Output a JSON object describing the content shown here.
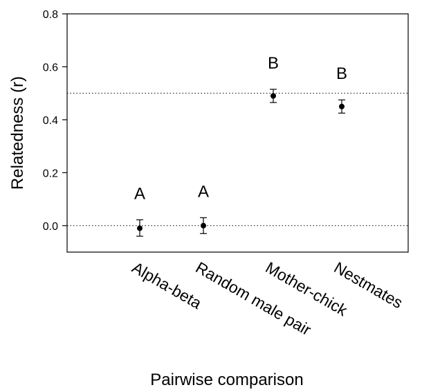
{
  "chart_data": {
    "type": "scatter",
    "xlabel": "Pairwise comparison",
    "ylabel": "Relatedness (r)",
    "ylim": [
      -0.1,
      0.8
    ],
    "yticks": [
      0.0,
      0.2,
      0.4,
      0.6,
      0.8
    ],
    "ytick_labels": [
      "0.0",
      "0.2",
      "0.4",
      "0.6",
      "0.8"
    ],
    "categories": [
      "Alpha-beta",
      "Random male pair",
      "Mother-chick",
      "Nestmates"
    ],
    "values": [
      -0.01,
      0.0,
      0.49,
      0.45
    ],
    "error_low": [
      -0.04,
      -0.03,
      0.465,
      0.425
    ],
    "error_high": [
      0.022,
      0.03,
      0.515,
      0.475
    ],
    "group_letters": [
      "A",
      "A",
      "B",
      "B"
    ],
    "reference_lines": [
      0.0,
      0.5
    ],
    "grid": false,
    "legend": "none"
  }
}
